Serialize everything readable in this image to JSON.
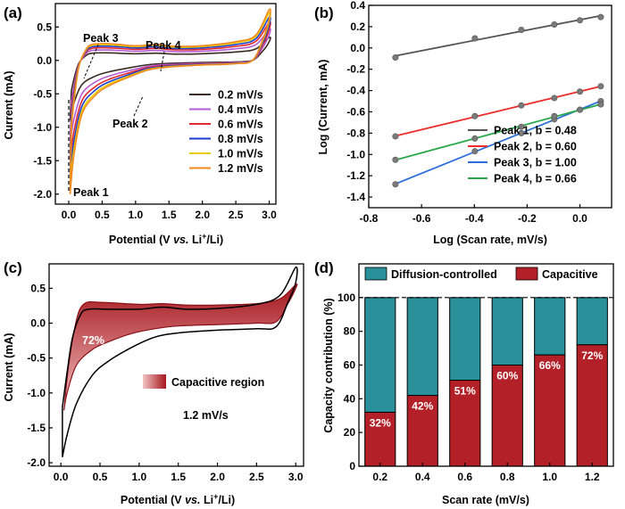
{
  "chart_data": [
    {
      "panel": "(a)",
      "type": "line",
      "title": "",
      "xlabel": "Potential (V vs. Li+/Li)",
      "ylabel": "Current (mA)",
      "xlim": [
        -0.2,
        3.1
      ],
      "ylim": [
        -2.15,
        0.85
      ],
      "xticks": [
        "0.0",
        "0.5",
        "1.0",
        "1.5",
        "2.0",
        "2.5",
        "3.0"
      ],
      "yticks": [
        "-2.0",
        "-1.5",
        "-1.0",
        "-0.5",
        "0.0",
        "0.5"
      ],
      "legend_position": "center-right",
      "series": [
        {
          "name": "0.2 mV/s",
          "color": "#3a2a22",
          "scale": 0.45
        },
        {
          "name": "0.4 mV/s",
          "color": "#b45bd6",
          "scale": 0.62
        },
        {
          "name": "0.6 mV/s",
          "color": "#e0282f",
          "scale": 0.75
        },
        {
          "name": "0.8 mV/s",
          "color": "#1c3fd0",
          "scale": 0.85
        },
        {
          "name": "1.0 mV/s",
          "color": "#e6cc00",
          "scale": 0.94
        },
        {
          "name": "1.2 mV/s",
          "color": "#f08a20",
          "scale": 1.0
        }
      ],
      "reference_curve": {
        "upper": [
          [
            0.04,
            -1.0
          ],
          [
            0.08,
            -0.6
          ],
          [
            0.15,
            -0.1
          ],
          [
            0.25,
            0.15
          ],
          [
            0.35,
            0.24
          ],
          [
            0.6,
            0.25
          ],
          [
            1.0,
            0.22
          ],
          [
            1.3,
            0.24
          ],
          [
            1.6,
            0.21
          ],
          [
            2.0,
            0.22
          ],
          [
            2.5,
            0.28
          ],
          [
            2.8,
            0.38
          ],
          [
            3.0,
            0.76
          ]
        ],
        "lower": [
          [
            3.0,
            0.62
          ],
          [
            2.9,
            0.3
          ],
          [
            2.75,
            0.0
          ],
          [
            2.5,
            -0.05
          ],
          [
            2.0,
            -0.07
          ],
          [
            1.5,
            -0.1
          ],
          [
            1.2,
            -0.14
          ],
          [
            0.9,
            -0.25
          ],
          [
            0.6,
            -0.38
          ],
          [
            0.4,
            -0.52
          ],
          [
            0.2,
            -0.8
          ],
          [
            0.08,
            -1.4
          ],
          [
            0.02,
            -2.0
          ]
        ]
      },
      "annotations": [
        {
          "text": "Peak 1",
          "x": 0.02,
          "y": -2.0
        },
        {
          "text": "Peak 2",
          "x": 0.95,
          "y": -0.28
        },
        {
          "text": "Peak 3",
          "x": 0.22,
          "y": 0.2
        },
        {
          "text": "Peak 4",
          "x": 1.25,
          "y": 0.24
        }
      ]
    },
    {
      "panel": "(b)",
      "type": "scatter",
      "title": "",
      "xlabel": "Log (Scan rate, mV/s)",
      "ylabel": "Log (Current, mA)",
      "xlim": [
        -0.8,
        0.12
      ],
      "ylim": [
        -1.5,
        0.4
      ],
      "xticks": [
        "-0.8",
        "-0.6",
        "-0.4",
        "-0.2",
        "0.0"
      ],
      "yticks": [
        "-1.4",
        "-1.2",
        "-1.0",
        "-0.8",
        "-0.6",
        "-0.4",
        "-0.2",
        "0.0",
        "0.2",
        "0.4"
      ],
      "legend_position": "bottom-right",
      "x": [
        -0.699,
        -0.398,
        -0.222,
        -0.097,
        0.0,
        0.079
      ],
      "series": [
        {
          "name": "Peak 1, b = 0.48",
          "color": "#555555",
          "values": [
            -0.09,
            0.09,
            0.17,
            0.22,
            0.26,
            0.29
          ]
        },
        {
          "name": "Peak 2, b = 0.60",
          "color": "#ee2c2c",
          "values": [
            -0.83,
            -0.64,
            -0.54,
            -0.47,
            -0.41,
            -0.36
          ]
        },
        {
          "name": "Peak 3, b = 1.00",
          "color": "#2a6fd6",
          "values": [
            -1.28,
            -0.97,
            -0.8,
            -0.67,
            -0.58,
            -0.5
          ]
        },
        {
          "name": "Peak 4, b = 0.66",
          "color": "#2aa84a",
          "values": [
            -1.05,
            -0.85,
            -0.74,
            -0.64,
            -0.58,
            -0.53
          ]
        }
      ]
    },
    {
      "panel": "(c)",
      "type": "area",
      "title": "",
      "xlabel": "Potential (V vs. Li+/Li)",
      "ylabel": "Current (mA)",
      "xlim": [
        -0.15,
        3.1
      ],
      "ylim": [
        -2.05,
        0.85
      ],
      "xticks": [
        "0.0",
        "0.5",
        "1.0",
        "1.5",
        "2.0",
        "2.5",
        "3.0"
      ],
      "yticks": [
        "-2.0",
        "-1.5",
        "-1.0",
        "-0.5",
        "0.0",
        "0.5"
      ],
      "legend_position": "center-right",
      "legend_label": "Capacitive region",
      "annotations": [
        "72%",
        "1.2 mV/s"
      ],
      "total_curve": {
        "upper": [
          [
            0.02,
            -1.2
          ],
          [
            0.08,
            -0.7
          ],
          [
            0.15,
            -0.2
          ],
          [
            0.25,
            0.12
          ],
          [
            0.35,
            0.2
          ],
          [
            0.6,
            0.2
          ],
          [
            1.0,
            0.2
          ],
          [
            1.3,
            0.23
          ],
          [
            1.6,
            0.2
          ],
          [
            2.0,
            0.21
          ],
          [
            2.5,
            0.27
          ],
          [
            2.8,
            0.4
          ],
          [
            3.0,
            0.8
          ]
        ],
        "lower": [
          [
            3.0,
            0.58
          ],
          [
            2.9,
            0.3
          ],
          [
            2.75,
            -0.05
          ],
          [
            2.5,
            -0.08
          ],
          [
            2.0,
            -0.1
          ],
          [
            1.5,
            -0.14
          ],
          [
            1.2,
            -0.2
          ],
          [
            0.9,
            -0.35
          ],
          [
            0.6,
            -0.55
          ],
          [
            0.4,
            -0.75
          ],
          [
            0.2,
            -1.15
          ],
          [
            0.08,
            -1.6
          ],
          [
            0.02,
            -1.92
          ]
        ]
      },
      "capacitive_curve": {
        "upper": [
          [
            0.04,
            -1.25
          ],
          [
            0.1,
            -0.6
          ],
          [
            0.2,
            0.05
          ],
          [
            0.3,
            0.28
          ],
          [
            0.5,
            0.3
          ],
          [
            1.0,
            0.27
          ],
          [
            1.3,
            0.28
          ],
          [
            1.6,
            0.26
          ],
          [
            2.0,
            0.26
          ],
          [
            2.5,
            0.28
          ],
          [
            2.8,
            0.35
          ],
          [
            3.0,
            0.55
          ]
        ],
        "lower": [
          [
            3.0,
            0.5
          ],
          [
            2.9,
            0.28
          ],
          [
            2.75,
            0.02
          ],
          [
            2.5,
            0.0
          ],
          [
            2.0,
            -0.02
          ],
          [
            1.5,
            -0.04
          ],
          [
            1.2,
            -0.08
          ],
          [
            0.9,
            -0.15
          ],
          [
            0.6,
            -0.27
          ],
          [
            0.4,
            -0.38
          ],
          [
            0.2,
            -0.6
          ],
          [
            0.08,
            -1.0
          ],
          [
            0.04,
            -1.25
          ]
        ]
      }
    },
    {
      "panel": "(d)",
      "type": "bar",
      "title": "",
      "xlabel": "Scan rate (mV/s)",
      "ylabel": "Capacity contribution (%)",
      "ylim": [
        0,
        120
      ],
      "yticks": [
        "0",
        "20",
        "40",
        "60",
        "80",
        "100"
      ],
      "legend_position": "top",
      "categories": [
        "0.2",
        "0.4",
        "0.6",
        "0.8",
        "1.0",
        "1.2"
      ],
      "series": [
        {
          "name": "Capacitive",
          "color": "#b42027",
          "values": [
            32,
            42,
            51,
            60,
            66,
            72
          ]
        },
        {
          "name": "Diffusion-controlled",
          "color": "#2a909a",
          "values": [
            68,
            58,
            49,
            40,
            34,
            28
          ]
        }
      ],
      "bar_labels": [
        "32%",
        "42%",
        "51%",
        "60%",
        "66%",
        "72%"
      ]
    }
  ]
}
